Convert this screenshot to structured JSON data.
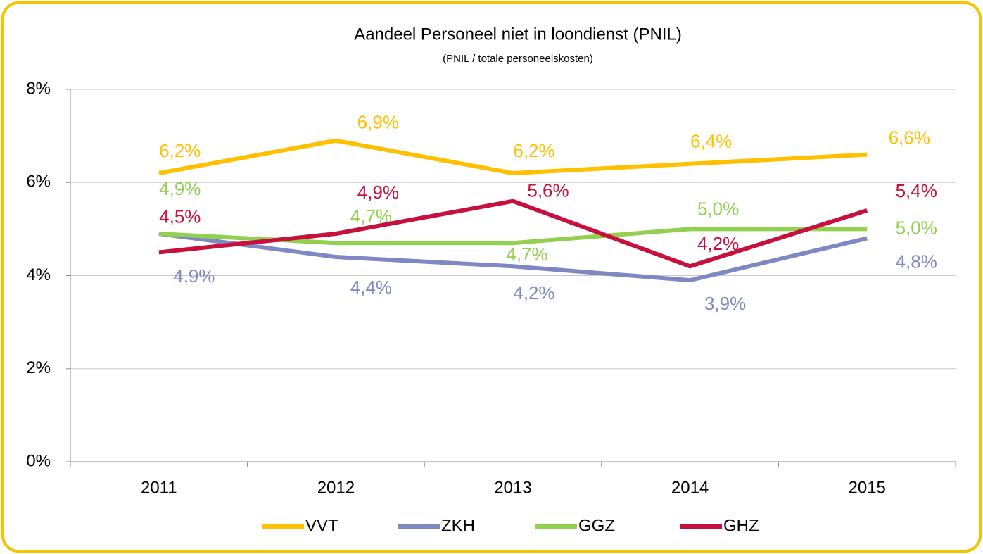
{
  "chart_data": {
    "type": "line",
    "title": "Aandeel Personeel niet in loondienst (PNIL)",
    "subtitle": "(PNIL / totale personeelskosten)",
    "categories": [
      "2011",
      "2012",
      "2013",
      "2014",
      "2015"
    ],
    "series": [
      {
        "name": "VVT",
        "color": "#ffc000",
        "values": [
          6.2,
          6.9,
          6.2,
          6.4,
          6.6
        ],
        "value_labels": [
          "6,2%",
          "6,9%",
          "6,2%",
          "6,4%",
          "6,6%"
        ]
      },
      {
        "name": "ZKH",
        "color": "#8088c4",
        "values": [
          4.9,
          4.4,
          4.2,
          3.9,
          4.8
        ],
        "value_labels": [
          "4,9%",
          "4,4%",
          "4,2%",
          "3,9%",
          "4,8%"
        ]
      },
      {
        "name": "GGZ",
        "color": "#92d050",
        "values": [
          4.9,
          4.7,
          4.7,
          5.0,
          5.0
        ],
        "value_labels": [
          "4,9%",
          "4,7%",
          "4,7%",
          "5,0%",
          "5,0%"
        ]
      },
      {
        "name": "GHZ",
        "color": "#c8103e",
        "values": [
          4.5,
          4.9,
          5.6,
          4.2,
          5.4
        ],
        "value_labels": [
          "4,5%",
          "4,9%",
          "5,6%",
          "4,2%",
          "5,4%"
        ]
      }
    ],
    "ylim": [
      0,
      8
    ],
    "yticks": [
      {
        "value": 0,
        "label": "0%"
      },
      {
        "value": 2,
        "label": "2%"
      },
      {
        "value": 4,
        "label": "4%"
      },
      {
        "value": 6,
        "label": "6%"
      },
      {
        "value": 8,
        "label": "8%"
      }
    ],
    "grid": true,
    "legend": "bottom"
  }
}
